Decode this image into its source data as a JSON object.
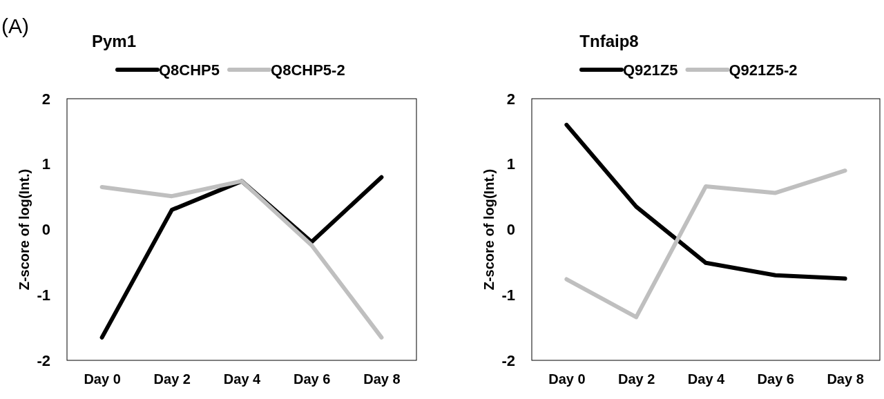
{
  "chart_data": [
    {
      "type": "line",
      "title": "Pym1",
      "ylabel": "Z-score of log(Int.)",
      "annotations": [
        "(A)"
      ],
      "categories": [
        "Day 0",
        "Day 2",
        "Day 4",
        "Day 6",
        "Day 8"
      ],
      "ylim": [
        -2,
        2
      ],
      "yticks": [
        -2,
        -1,
        0,
        1,
        2
      ],
      "grid": false,
      "legend": "top",
      "marker": "none",
      "line_style": "solid",
      "series": [
        {
          "name": "Q8CHP5",
          "color": "#000000",
          "values": [
            -1.65,
            0.3,
            0.74,
            -0.19,
            0.8
          ]
        },
        {
          "name": "Q8CHP5-2",
          "color": "#bfbfbf",
          "values": [
            0.65,
            0.51,
            0.74,
            -0.24,
            -1.65
          ]
        }
      ]
    },
    {
      "type": "line",
      "title": "Tnfaip8",
      "ylabel": "Z-score of log(Int.)",
      "categories": [
        "Day 0",
        "Day 2",
        "Day 4",
        "Day 6",
        "Day 8"
      ],
      "ylim": [
        -2,
        2
      ],
      "yticks": [
        -2,
        -1,
        0,
        1,
        2
      ],
      "grid": false,
      "legend": "top",
      "marker": "none",
      "line_style": "solid",
      "series": [
        {
          "name": "Q921Z5",
          "color": "#000000",
          "values": [
            1.6,
            0.35,
            -0.51,
            -0.7,
            -0.75
          ]
        },
        {
          "name": "Q921Z5-2",
          "color": "#bfbfbf",
          "values": [
            -0.76,
            -1.34,
            0.66,
            0.56,
            0.9
          ]
        }
      ]
    }
  ]
}
